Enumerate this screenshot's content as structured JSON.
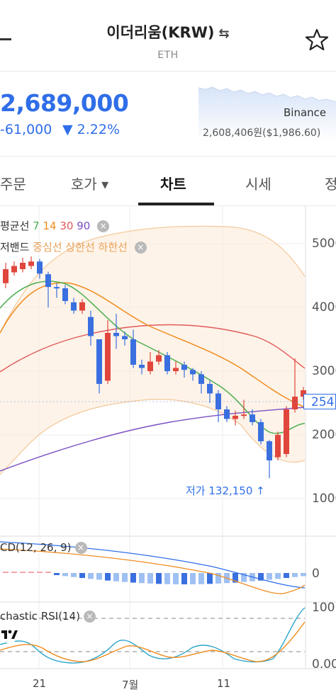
{
  "header": {
    "title": "이더리움(KRW)",
    "swap_icon": "⇆",
    "subtitle": "ETH"
  },
  "ticker": {
    "price": "2,689,000",
    "change": "-61,000",
    "change_rate": "▼ 2.22%",
    "price_color": "#2f6ee8",
    "exchange": "Binance",
    "exchange_price": "2,608,406원($1,986.60)"
  },
  "tabs": [
    {
      "label": "주문"
    },
    {
      "label": "호가 ▾"
    },
    {
      "label": "차트"
    },
    {
      "label": "시세"
    },
    {
      "label": "정"
    }
  ],
  "indicators": {
    "ma_prefix": "평균선 ",
    "ma_7": "7",
    "ma_14": "14",
    "ma_30": "30",
    "ma_90": "90",
    "bb_prefix": "저밴드 ",
    "bb_mid": "중심선",
    "bb_upper": "상한선",
    "bb_lower": "하한선",
    "macd": "CD(12, 26, 9)",
    "rsi": "chastic RSI(14)",
    "close_symbol": "×",
    "colors": {
      "ma7": "#4caf50",
      "ma14": "#f08c1e",
      "ma30": "#e05a5a",
      "ma90": "#7b4fc4",
      "bb": "#f0b070"
    }
  },
  "price_axis": {
    "ticks": [
      "5000",
      "4000",
      "3000",
      "2000",
      "1000"
    ],
    "current_tag": "254"
  },
  "low_marker": "저가 132,150 ↑",
  "macd_axis": {
    "tick": "0"
  },
  "rsi_axis": {
    "ticks": [
      "100",
      "0.00"
    ]
  },
  "x_axis": [
    "21",
    "7월",
    "11"
  ],
  "chart_data": {
    "type": "candlestick",
    "candles": [
      {
        "o": 4380,
        "c": 4600,
        "h": 4700,
        "l": 4300
      },
      {
        "o": 4550,
        "c": 4650,
        "h": 4720,
        "l": 4500
      },
      {
        "o": 4600,
        "c": 4700,
        "h": 4780,
        "l": 4550
      },
      {
        "o": 4650,
        "c": 4720,
        "h": 4800,
        "l": 4600
      },
      {
        "o": 4720,
        "c": 4530,
        "h": 4760,
        "l": 4450
      },
      {
        "o": 4520,
        "c": 4320,
        "h": 4560,
        "l": 4000
      },
      {
        "o": 4320,
        "c": 4300,
        "h": 4380,
        "l": 4150
      },
      {
        "o": 4300,
        "c": 4100,
        "h": 4350,
        "l": 4050
      },
      {
        "o": 4080,
        "c": 3950,
        "h": 4150,
        "l": 3900
      },
      {
        "o": 3950,
        "c": 4080,
        "h": 4130,
        "l": 3900
      },
      {
        "o": 3850,
        "c": 3550,
        "h": 3950,
        "l": 3400
      },
      {
        "o": 3500,
        "c": 2800,
        "h": 3500,
        "l": 2650
      },
      {
        "o": 2850,
        "c": 3600,
        "h": 3800,
        "l": 2800
      },
      {
        "o": 3600,
        "c": 3550,
        "h": 3900,
        "l": 3350
      },
      {
        "o": 3550,
        "c": 3500,
        "h": 3620,
        "l": 3400
      },
      {
        "o": 3500,
        "c": 3100,
        "h": 3650,
        "l": 3050
      },
      {
        "o": 3100,
        "c": 3050,
        "h": 3180,
        "l": 2950
      },
      {
        "o": 3000,
        "c": 3150,
        "h": 3300,
        "l": 2950
      },
      {
        "o": 3150,
        "c": 3250,
        "h": 3330,
        "l": 3100
      },
      {
        "o": 3250,
        "c": 3000,
        "h": 3300,
        "l": 2950
      },
      {
        "o": 3000,
        "c": 3050,
        "h": 3150,
        "l": 2950
      },
      {
        "o": 3100,
        "c": 3020,
        "h": 3150,
        "l": 2900
      },
      {
        "o": 3020,
        "c": 2950,
        "h": 3050,
        "l": 2850
      },
      {
        "o": 2950,
        "c": 2800,
        "h": 3000,
        "l": 2650
      },
      {
        "o": 2800,
        "c": 2650,
        "h": 2850,
        "l": 2500
      },
      {
        "o": 2650,
        "c": 2400,
        "h": 2700,
        "l": 2200
      },
      {
        "o": 2400,
        "c": 2250,
        "h": 2450,
        "l": 2200
      },
      {
        "o": 2250,
        "c": 2300,
        "h": 2380,
        "l": 2150
      },
      {
        "o": 2300,
        "c": 2320,
        "h": 2550,
        "l": 2250
      },
      {
        "o": 2320,
        "c": 2200,
        "h": 2400,
        "l": 2150
      },
      {
        "o": 2200,
        "c": 1900,
        "h": 2250,
        "l": 1850
      },
      {
        "o": 1900,
        "c": 1600,
        "h": 1920,
        "l": 1321
      },
      {
        "o": 1650,
        "c": 2000,
        "h": 2050,
        "l": 1600
      },
      {
        "o": 1700,
        "c": 2400,
        "h": 2450,
        "l": 1650
      },
      {
        "o": 2400,
        "c": 2600,
        "h": 3200,
        "l": 2350
      },
      {
        "o": 2600,
        "c": 2700,
        "h": 2750,
        "l": 2550
      }
    ]
  }
}
